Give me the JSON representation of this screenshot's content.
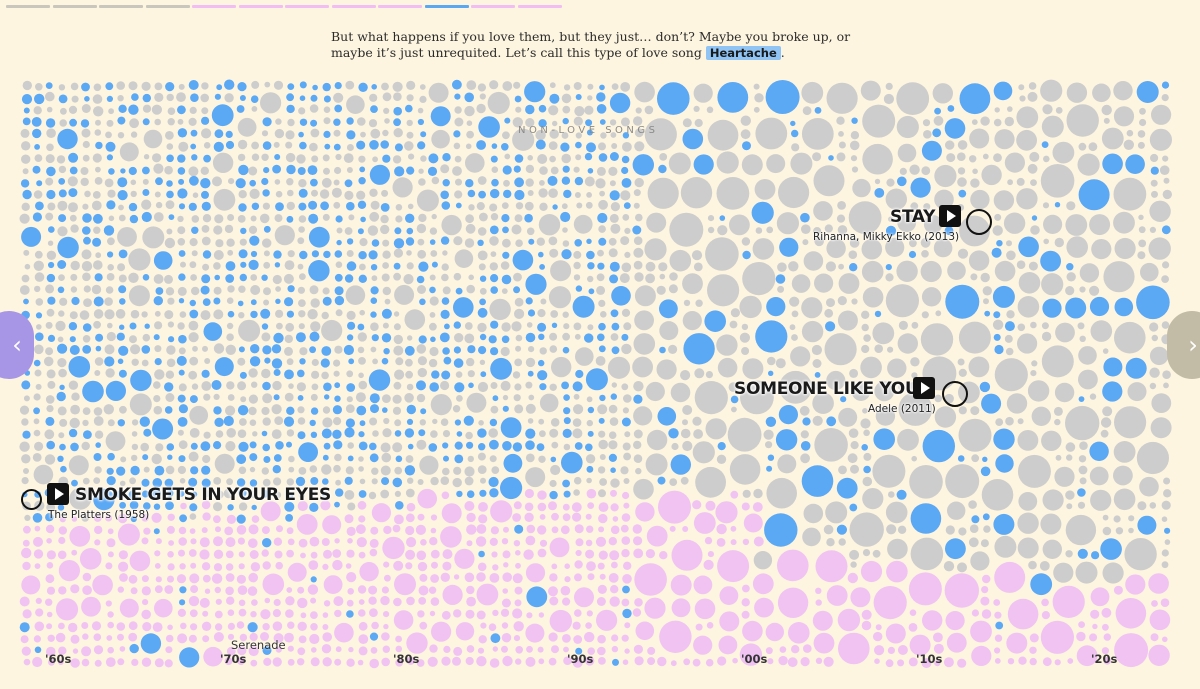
{
  "progress": {
    "segment_count": 12,
    "active_index": 9,
    "colors": {
      "done": "#c9c6bd",
      "pink": "#f2bdf2",
      "active": "#5aa7f2"
    }
  },
  "intro": {
    "text": "But what happens if you love them, but they just… don’t? Maybe you broke up, or maybe it’s just unrequited. Let’s call this type of love song ",
    "highlight": "Heartache",
    "end": "."
  },
  "nav": {
    "prev_icon": "chevron-left-icon",
    "next_icon": "chevron-right-icon",
    "prev_glyph": "‹",
    "next_glyph": "›"
  },
  "chart_data": {
    "type": "scatter",
    "title": "",
    "region_label": "NON-LOVE SONGS",
    "x_ticks": [
      "'60s",
      "'70s",
      "'80s",
      "'90s",
      "'00s",
      "'10s",
      "'20s"
    ],
    "category_colors": {
      "non_love": "#cdcdcd",
      "heartache": "#5ba8f5",
      "love": "#f0c3f3"
    },
    "annotated_songs": [
      {
        "title": "SMOKE GETS IN YOUR EYES",
        "artist": "The Platters (1958)",
        "category": "heartache"
      },
      {
        "title": "SOMEONE LIKE YOU",
        "artist": "Adele (2011)",
        "category": "heartache"
      },
      {
        "title": "STAY",
        "artist": "Rihanna, Mikky Ekko (2013)",
        "category": "heartache"
      },
      {
        "title": "Serenade",
        "artist": "",
        "category": "love"
      }
    ]
  }
}
